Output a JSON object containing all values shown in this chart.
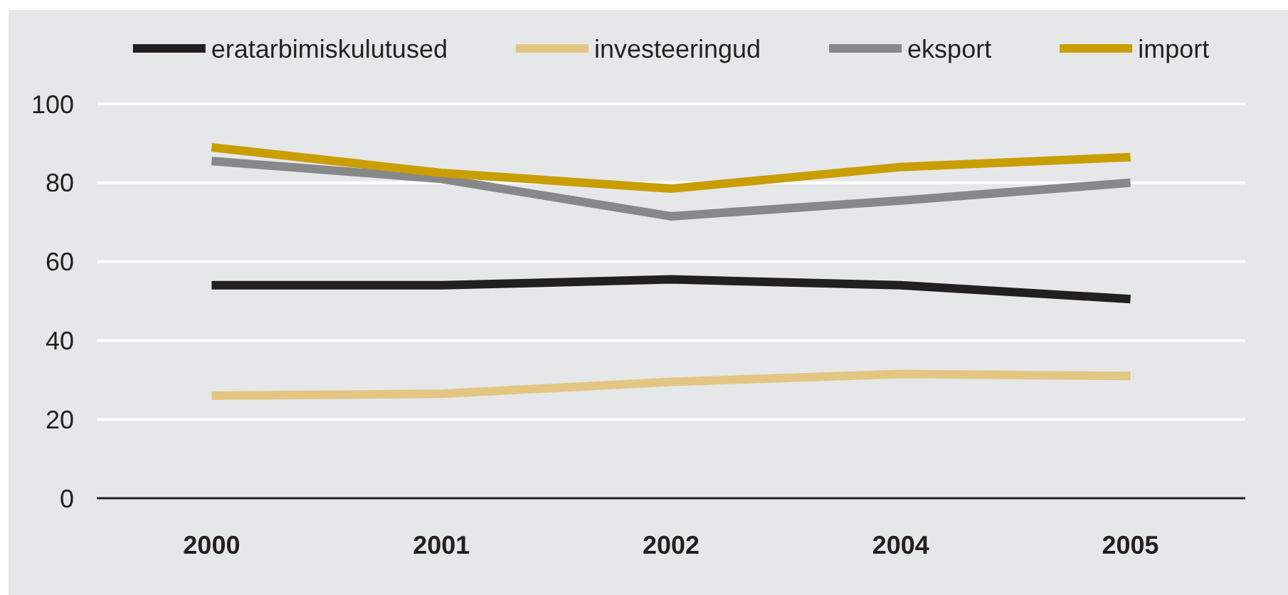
{
  "chart_data": {
    "type": "line",
    "categories": [
      "2000",
      "2001",
      "2002",
      "2004",
      "2005"
    ],
    "series": [
      {
        "name": "eratarbimiskulutused",
        "color": "#231f20",
        "values": [
          54,
          54,
          55.5,
          54,
          50.5
        ]
      },
      {
        "name": "investeeringud",
        "color": "#e2c682",
        "values": [
          26,
          26.5,
          29.5,
          31.5,
          31
        ]
      },
      {
        "name": "eksport",
        "color": "#87888a",
        "values": [
          85.5,
          81,
          71.5,
          75.5,
          80
        ]
      },
      {
        "name": "import",
        "color": "#c89e00",
        "values": [
          89,
          82.5,
          78.5,
          84,
          86.5
        ]
      }
    ],
    "ylim": [
      0,
      100
    ],
    "yticks": [
      0,
      20,
      40,
      60,
      80,
      100
    ],
    "grid": "y",
    "legend": "top",
    "line_style": "solid"
  }
}
